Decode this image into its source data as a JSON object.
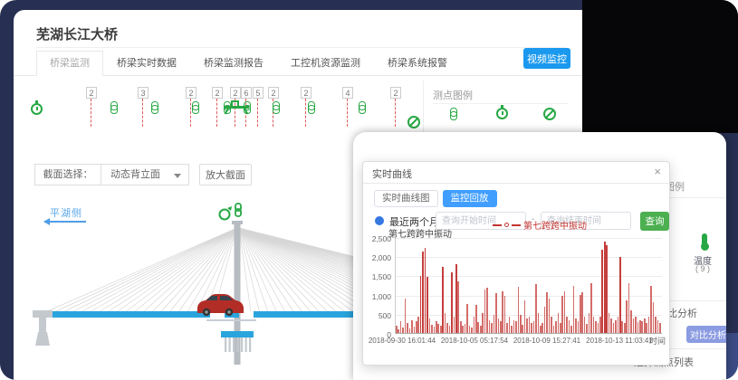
{
  "colors": {
    "accent_blue": "#1b99ee",
    "green": "#27a844",
    "red": "#c23531",
    "navy": "#272f52",
    "deck_blue": "#2aa4dd",
    "lavender": "#8c9ce2"
  },
  "window1": {
    "title": "芜湖长江大桥",
    "tabs": [
      {
        "label": "桥梁监测",
        "active": true
      },
      {
        "label": "桥梁实时数据",
        "active": false
      },
      {
        "label": "桥梁监测报告",
        "active": false
      },
      {
        "label": "工控机资源监测",
        "active": false
      },
      {
        "label": "桥梁系统报警",
        "active": false
      }
    ],
    "video_button_label": "视频监控",
    "sensor_strip": {
      "badge_values": [
        "2",
        "3",
        "2",
        "2",
        "2",
        "6",
        "5",
        "2",
        "2",
        "4",
        "2"
      ]
    },
    "legend_panel": {
      "title": "测点图例"
    },
    "section_bar": {
      "label": "截面选择：",
      "selected_option": "动态背立面",
      "zoom_button_label": "放大截面"
    },
    "diagram": {
      "side_label": "平湖侧"
    }
  },
  "window2": {
    "legend_panel_title": "测点图例",
    "temperature": {
      "label": "温度",
      "count": "( 9 )"
    },
    "compare_section_title": "对比分析",
    "compare_button_label": "对比分析",
    "point_list_label": "选择测点列表"
  },
  "dialog": {
    "title": "实时曲线",
    "close_label": "×",
    "tabs": [
      {
        "label": "实时曲线图",
        "active": false
      },
      {
        "label": "监控回放",
        "active": true
      }
    ],
    "query": {
      "radio_label": "最近两个月",
      "start_placeholder": "查询开始时间",
      "separator": "-",
      "end_placeholder": "查询结束时间",
      "submit_label": "查询"
    }
  },
  "chart_data": {
    "type": "bar",
    "title": "第七跨跨中振动",
    "legend": "第七跨跨中振动",
    "xlabel": "时间",
    "ylabel": "",
    "ylim": [
      0,
      2500
    ],
    "grid": true,
    "legend_position": "top",
    "y_ticks": [
      "2,500",
      "2,000",
      "1,500",
      "1,000",
      "500",
      "0"
    ],
    "x_ticks": [
      "2018-09-30 16:01:44",
      "2018-10-05 05:17:54",
      "2018-10-09 15:27:41",
      "2018-10-13 11:03:41"
    ],
    "series": [
      {
        "name": "第七跨跨中振动",
        "color": "#c23531",
        "values": [
          180,
          90,
          320,
          140,
          900,
          260,
          120,
          340,
          160,
          300,
          420,
          1500,
          2150,
          2250,
          1480,
          380,
          220,
          160,
          300,
          240,
          180,
          1750,
          520,
          260,
          190,
          1600,
          420,
          1800,
          1350,
          300,
          180,
          240,
          760,
          200,
          150,
          420,
          750,
          280,
          180,
          520,
          1150,
          1180,
          340,
          260,
          480,
          1050,
          380,
          300,
          1100,
          980,
          260,
          420,
          200,
          340,
          300,
          1220,
          480,
          220,
          850,
          380,
          420,
          260,
          300,
          1280,
          520,
          180,
          260,
          700,
          1080,
          900,
          420,
          200,
          300,
          520,
          260,
          980,
          1100,
          420,
          340,
          180,
          1250,
          380,
          300,
          1000,
          1080,
          420,
          240,
          520,
          1300,
          420,
          300,
          260,
          420,
          2200,
          2400,
          2300,
          520,
          380,
          260,
          340,
          420,
          2000,
          300,
          260,
          850,
          1300,
          600,
          380,
          420,
          280,
          340,
          300,
          380,
          260,
          420,
          1250,
          800,
          420,
          340,
          260
        ]
      }
    ]
  }
}
